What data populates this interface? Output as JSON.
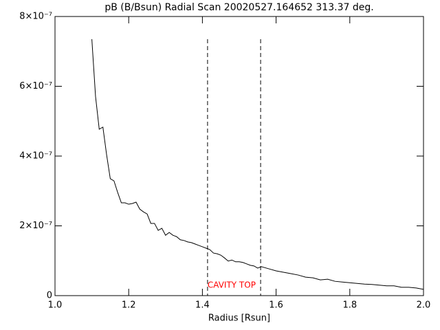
{
  "chart_data": {
    "type": "line",
    "title": "pB (B/Bsun) Radial Scan 20020527.164652 313.37 deg.",
    "x_label": "Radius [Rsun]",
    "annotation": "CAVITY TOP",
    "annotation_color": "#ff0000",
    "color": "#000000",
    "x": [
      1.1,
      1.11,
      1.12,
      1.13,
      1.14,
      1.15,
      1.16,
      1.17,
      1.18,
      1.19,
      1.2,
      1.21,
      1.22,
      1.23,
      1.24,
      1.25,
      1.26,
      1.27,
      1.28,
      1.29,
      1.3,
      1.31,
      1.32,
      1.33,
      1.34,
      1.35,
      1.36,
      1.37,
      1.38,
      1.39,
      1.4,
      1.41,
      1.42,
      1.43,
      1.44,
      1.45,
      1.46,
      1.47,
      1.48,
      1.49,
      1.5,
      1.51,
      1.52,
      1.53,
      1.54,
      1.55,
      1.56,
      1.58,
      1.6,
      1.62,
      1.64,
      1.66,
      1.68,
      1.7,
      1.72,
      1.74,
      1.76,
      1.78,
      1.8,
      1.82,
      1.84,
      1.86,
      1.88,
      1.9,
      1.92,
      1.94,
      1.96,
      1.98,
      2.0
    ],
    "values": [
      7.35e-07,
      5.71e-07,
      4.77e-07,
      4.83e-07,
      4.04e-07,
      3.35e-07,
      3.29e-07,
      2.96e-07,
      2.66e-07,
      2.66e-07,
      2.62e-07,
      2.64e-07,
      2.68e-07,
      2.48e-07,
      2.4e-07,
      2.34e-07,
      2.07e-07,
      2.07e-07,
      1.87e-07,
      1.93e-07,
      1.73e-07,
      1.81e-07,
      1.73e-07,
      1.69e-07,
      1.6e-07,
      1.58e-07,
      1.54e-07,
      1.52e-07,
      1.48e-07,
      1.44e-07,
      1.4e-07,
      1.36e-07,
      1.32e-07,
      1.22e-07,
      1.2e-07,
      1.16e-07,
      1.08e-07,
      9.9e-08,
      1.02e-07,
      9.7e-08,
      9.7e-08,
      9.5e-08,
      9.1e-08,
      8.7e-08,
      8.5e-08,
      7.9e-08,
      8.3e-08,
      7.7e-08,
      7.1e-08,
      6.7e-08,
      6.3e-08,
      5.9e-08,
      5.3e-08,
      5.1e-08,
      4.5e-08,
      4.7e-08,
      4.1e-08,
      3.9e-08,
      3.7e-08,
      3.5e-08,
      3.3e-08,
      3.2e-08,
      3e-08,
      2.8e-08,
      2.8e-08,
      2.4e-08,
      2.4e-08,
      2.2e-08,
      1.8e-08
    ],
    "vlines": [
      1.414,
      1.558
    ],
    "xlim": [
      1.0,
      2.0
    ],
    "ylim": [
      0,
      8e-07
    ],
    "xticks": [
      {
        "value": 1.0,
        "label": "1.0"
      },
      1.2,
      1.4,
      1.6,
      1.8,
      {
        "value": 2.0,
        "label": "2.0"
      }
    ],
    "yticks": [
      0,
      {
        "value": 2e-07,
        "label": "2×10⁻⁷"
      },
      {
        "value": 4e-07,
        "label": "4×10⁻⁷"
      },
      {
        "value": 6e-07,
        "label": "6×10⁻⁷"
      },
      {
        "value": 8e-07,
        "label": "8×10⁻⁷"
      }
    ]
  }
}
